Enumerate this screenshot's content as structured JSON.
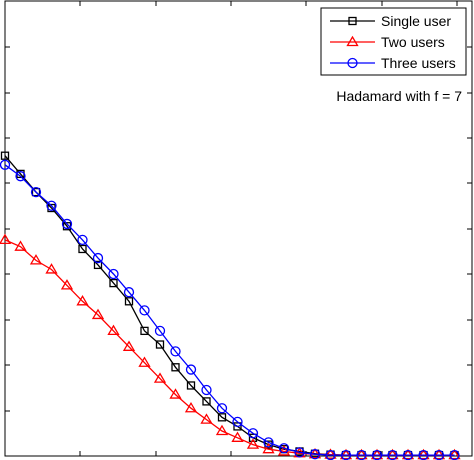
{
  "chart_data": {
    "type": "line",
    "grid": false,
    "legend_position": "top-right",
    "x": [
      0,
      1,
      2,
      3,
      4,
      5,
      6,
      7,
      8,
      9,
      10,
      11,
      12,
      13,
      14,
      15,
      16,
      17,
      18,
      19,
      20,
      21,
      22,
      23,
      24,
      25,
      26,
      27,
      28,
      29
    ],
    "xlim": [
      0,
      29
    ],
    "ylim": [
      0,
      1
    ],
    "series": [
      {
        "name": "Single user",
        "color": "#000000",
        "marker": "square",
        "values": [
          0.66,
          0.62,
          0.58,
          0.545,
          0.505,
          0.455,
          0.42,
          0.38,
          0.34,
          0.275,
          0.245,
          0.195,
          0.155,
          0.12,
          0.085,
          0.065,
          0.04,
          0.025,
          0.015,
          0.01,
          0.005,
          0.003,
          0.002,
          0.002,
          0.002,
          0.002,
          0.002,
          0.002,
          0.002,
          0.002
        ]
      },
      {
        "name": "Two users",
        "color": "#ff0000",
        "marker": "triangle",
        "values": [
          0.475,
          0.46,
          0.43,
          0.41,
          0.375,
          0.34,
          0.31,
          0.275,
          0.24,
          0.205,
          0.17,
          0.135,
          0.105,
          0.08,
          0.055,
          0.04,
          0.025,
          0.015,
          0.01,
          0.006,
          0.004,
          0.003,
          0.002,
          0.002,
          0.002,
          0.002,
          0.002,
          0.002,
          0.002,
          0.002
        ]
      },
      {
        "name": "Three users",
        "color": "#0000ff",
        "marker": "circle",
        "values": [
          0.64,
          0.615,
          0.58,
          0.55,
          0.51,
          0.475,
          0.435,
          0.4,
          0.36,
          0.32,
          0.275,
          0.23,
          0.19,
          0.145,
          0.105,
          0.075,
          0.05,
          0.03,
          0.017,
          0.008,
          0.004,
          0.002,
          0.002,
          0.002,
          0.002,
          0.002,
          0.002,
          0.002,
          0.002,
          0.002
        ]
      }
    ],
    "annotation": "Hadamard with f = 7"
  }
}
